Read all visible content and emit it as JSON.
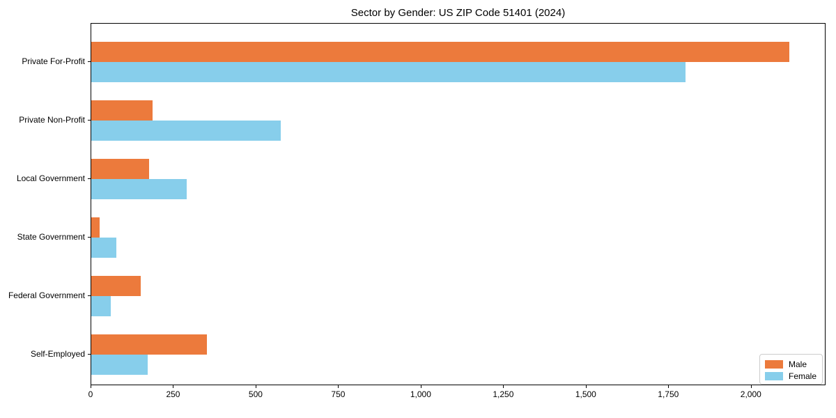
{
  "chart_data": {
    "type": "bar",
    "orientation": "horizontal",
    "title": "Sector by Gender: US ZIP Code 51401 (2024)",
    "categories": [
      "Private For-Profit",
      "Private Non-Profit",
      "Local Government",
      "State Government",
      "Federal Government",
      "Self-Employed"
    ],
    "series": [
      {
        "name": "Male",
        "color": "#EC7A3C",
        "values": [
          2115,
          185,
          175,
          25,
          150,
          350
        ]
      },
      {
        "name": "Female",
        "color": "#87CEEB",
        "values": [
          1800,
          575,
          290,
          75,
          60,
          170
        ]
      }
    ],
    "xlabel": "",
    "ylabel": "",
    "xlim": [
      0,
      2222
    ],
    "x_ticks": [
      0,
      250,
      500,
      750,
      1000,
      1250,
      1500,
      1750,
      2000
    ],
    "x_tick_labels": [
      "0",
      "250",
      "500",
      "750",
      "1,000",
      "1,250",
      "1,500",
      "1,750",
      "2,000"
    ],
    "grid": false,
    "legend": {
      "position": "lower right",
      "entries": [
        "Male",
        "Female"
      ]
    },
    "colors": {
      "male": "#EC7A3C",
      "female": "#87CEEB",
      "axis": "#000000",
      "legend_border": "#cccccc",
      "background": "#ffffff"
    }
  }
}
